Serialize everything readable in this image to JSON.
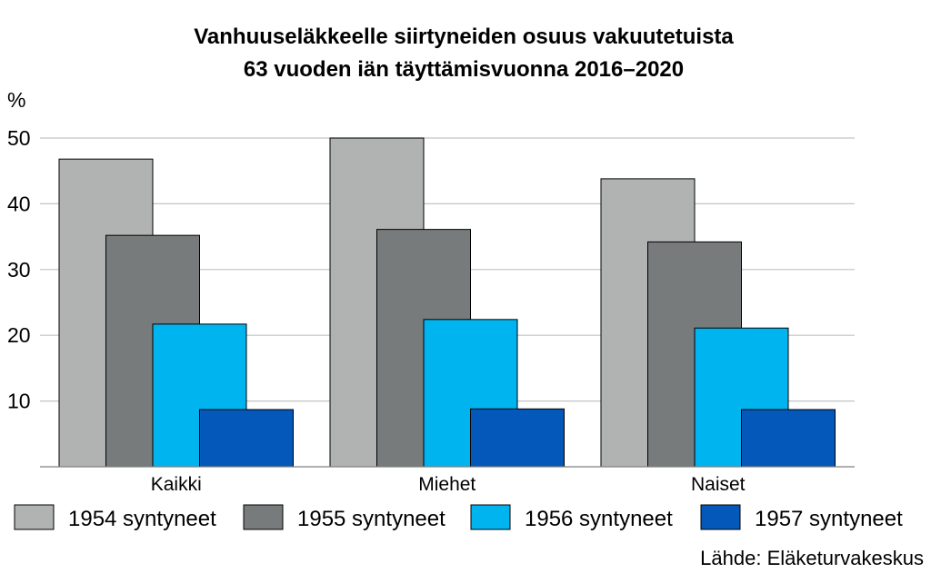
{
  "chart_data": {
    "type": "bar",
    "title": [
      "Vanhuuseläkkeelle siirtyneiden osuus vakuutetuista",
      "63 vuoden iän täyttämisvuonna 2016–2020"
    ],
    "ylabel": "%",
    "xlabel": "",
    "ylim": [
      0,
      50
    ],
    "yticks": [
      "10",
      "20",
      "30",
      "40",
      "50"
    ],
    "grid": true,
    "legend_position": "bottom",
    "categories": [
      "Kaikki",
      "Miehet",
      "Naiset"
    ],
    "series": [
      {
        "name": "1954 syntyneet",
        "color": "#b1b3b2",
        "values": [
          46.8,
          50.0,
          43.8
        ]
      },
      {
        "name": "1955 syntyneet",
        "color": "#777b7b",
        "values": [
          35.2,
          36.1,
          34.2
        ]
      },
      {
        "name": "1956 syntyneet",
        "color": "#00b4f0",
        "values": [
          21.7,
          22.4,
          21.1
        ]
      },
      {
        "name": "1957 syntyneet",
        "color": "#0358b9",
        "values": [
          8.7,
          8.8,
          8.7
        ]
      }
    ],
    "source": "Lähde: Eläketurvakeskus"
  }
}
